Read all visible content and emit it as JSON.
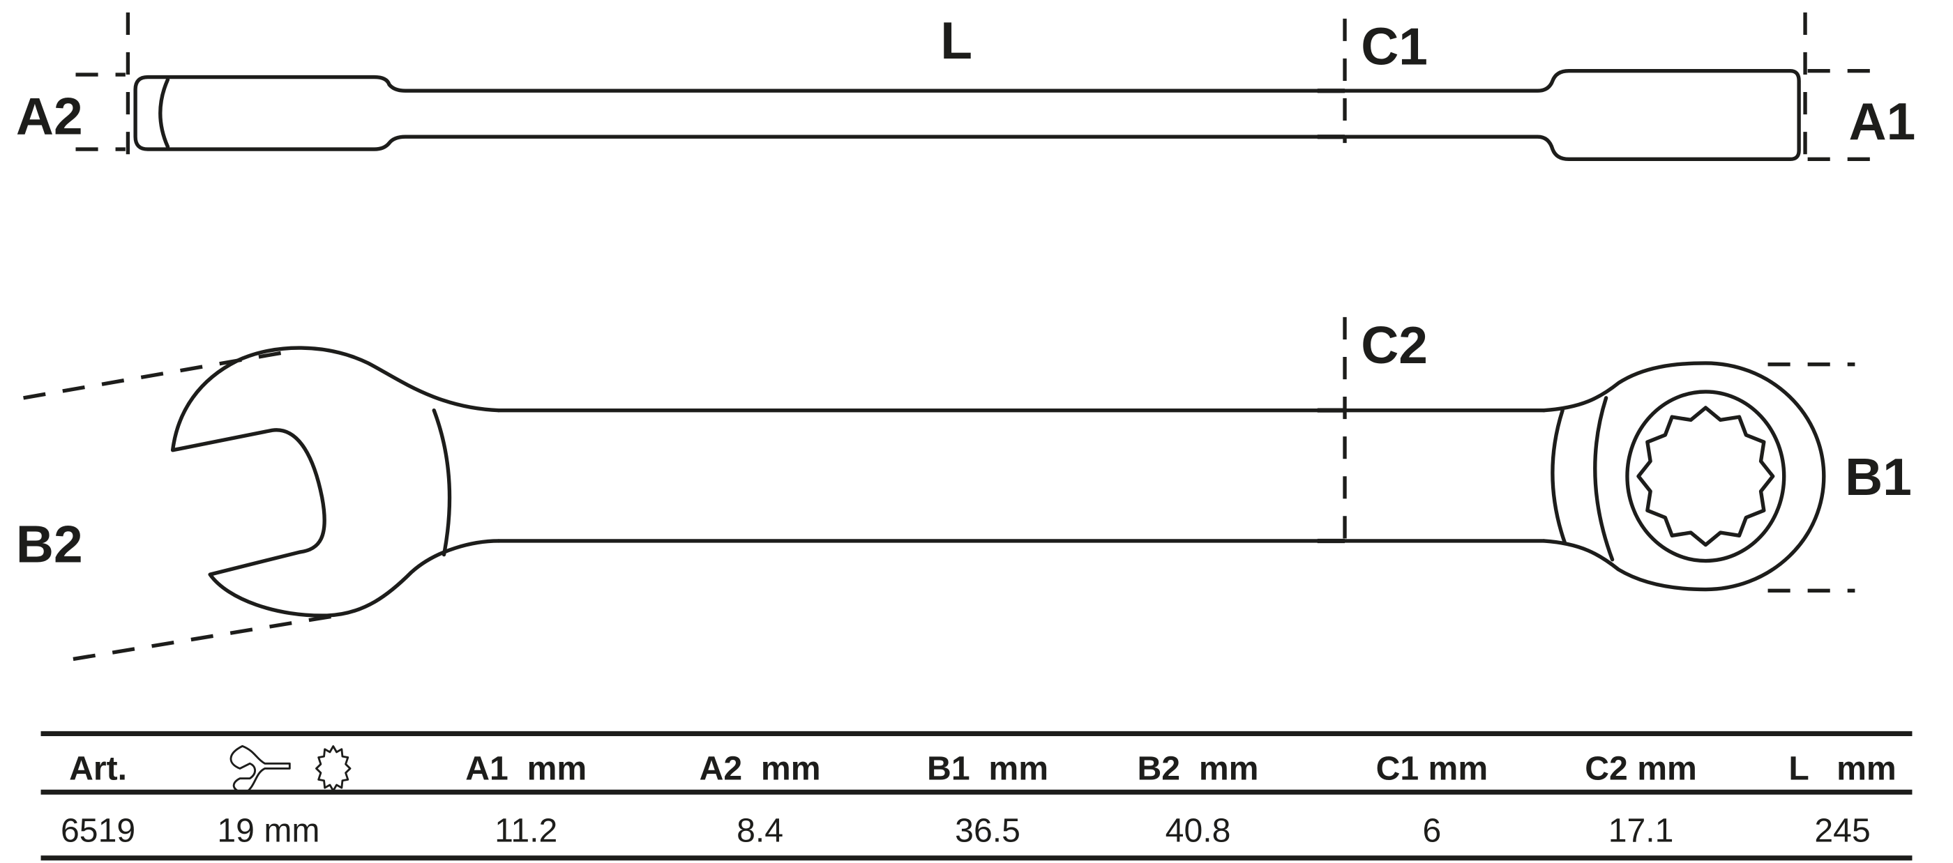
{
  "drawing": {
    "labels": {
      "L": "L",
      "C1": "C1",
      "C2": "C2",
      "A1": "A1",
      "A2": "A2",
      "B1": "B1",
      "B2": "B2"
    },
    "line_color": "#1d1d1b"
  },
  "table": {
    "headers": [
      "Art.",
      "",
      "A1  mm",
      "A2  mm",
      "B1  mm",
      "B2  mm",
      "C1 mm",
      "C2 mm",
      "L   mm"
    ],
    "header_icons": [
      "open-end-wrench-icon",
      "twelve-point-ring-icon"
    ],
    "rows": [
      [
        "6519",
        "19 mm",
        "11.2",
        "8.4",
        "36.5",
        "40.8",
        "6",
        "17.1",
        "245"
      ]
    ]
  }
}
